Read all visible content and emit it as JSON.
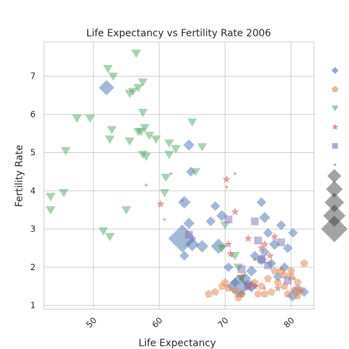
{
  "chart_data": {
    "type": "scatter",
    "title": "Life Expectancy vs Fertility Rate 2006",
    "xlabel": "Life Expectancy",
    "ylabel": "Fertility Rate",
    "xlim": [
      42.5,
      83.5
    ],
    "ylim": [
      0.9,
      7.9
    ],
    "xticks": [
      50,
      60,
      70,
      80
    ],
    "yticks": [
      1,
      2,
      3,
      4,
      5,
      6,
      7
    ],
    "grid": true,
    "legend": "right",
    "series": [
      {
        "marker": "diamond",
        "color": "#4c72b0",
        "points": [
          [
            52,
            6.7
          ],
          [
            64.5,
            5.2
          ],
          [
            64.8,
            4.5
          ],
          [
            63.8,
            3.7
          ],
          [
            64.5,
            3.15
          ],
          [
            63.5,
            2.75
          ],
          [
            65,
            2.6
          ],
          [
            66.5,
            2.55
          ],
          [
            63.8,
            2.3
          ],
          [
            67.8,
            3.2
          ],
          [
            68.5,
            3.6
          ],
          [
            69.5,
            3.35
          ],
          [
            69,
            2.55
          ],
          [
            70.5,
            2.0
          ],
          [
            72,
            1.5
          ],
          [
            73,
            1.7
          ],
          [
            74,
            1.9
          ],
          [
            75.5,
            3.7
          ],
          [
            76,
            3.3
          ],
          [
            76.5,
            2.9
          ],
          [
            77.5,
            2.6
          ],
          [
            78.5,
            3.1
          ],
          [
            80.3,
            2.9
          ],
          [
            79,
            2.0
          ],
          [
            80.2,
            1.25
          ],
          [
            81,
            1.4
          ],
          [
            82,
            1.35
          ],
          [
            74.5,
            2.3
          ],
          [
            76,
            2.4
          ],
          [
            75.5,
            2.2
          ],
          [
            77,
            2.1
          ],
          [
            78,
            1.75
          ],
          [
            71.5,
            1.6
          ],
          [
            72.5,
            1.3
          ],
          [
            73.5,
            1.55
          ],
          [
            79.5,
            2.5
          ],
          [
            74,
            1.5
          ]
        ],
        "sizes": [
          22,
          16,
          14,
          18,
          16,
          40,
          20,
          18,
          14,
          14,
          14,
          16,
          22,
          14,
          34,
          18,
          16,
          14,
          16,
          14,
          16,
          14,
          14,
          14,
          16,
          16,
          14,
          14,
          14,
          16,
          14,
          14,
          14,
          12,
          14,
          14,
          18
        ]
      },
      {
        "marker": "pentagon",
        "color": "#dd8452",
        "points": [
          [
            67.5,
            1.3
          ],
          [
            68.5,
            1.35
          ],
          [
            69.5,
            1.5
          ],
          [
            70.5,
            1.45
          ],
          [
            71.5,
            1.4
          ],
          [
            72.5,
            1.3
          ],
          [
            73.5,
            1.5
          ],
          [
            74.5,
            1.6
          ],
          [
            75,
            1.3
          ],
          [
            76,
            1.3
          ],
          [
            77,
            1.35
          ],
          [
            78,
            1.6
          ],
          [
            79,
            1.8
          ],
          [
            80,
            1.9
          ],
          [
            81,
            1.6
          ],
          [
            82,
            2.1
          ],
          [
            80.5,
            1.4
          ],
          [
            79.5,
            1.3
          ],
          [
            78.5,
            1.9
          ],
          [
            77.5,
            1.9
          ],
          [
            76.5,
            1.7
          ],
          [
            75.5,
            1.5
          ],
          [
            81.5,
            1.4
          ],
          [
            80,
            1.75
          ],
          [
            79,
            1.5
          ],
          [
            72,
            1.2
          ],
          [
            70,
            1.6
          ],
          [
            81,
            1.25
          ]
        ]
      },
      {
        "marker": "triangle-down",
        "color": "#55a868",
        "points": [
          [
            56.5,
            7.6
          ],
          [
            52.2,
            7.2
          ],
          [
            53,
            7.0
          ],
          [
            57.5,
            6.85
          ],
          [
            56.8,
            6.7
          ],
          [
            56,
            6.6
          ],
          [
            55.5,
            6.55
          ],
          [
            47.5,
            5.9
          ],
          [
            49.5,
            5.9
          ],
          [
            52.8,
            5.6
          ],
          [
            57.5,
            6.05
          ],
          [
            57.8,
            5.65
          ],
          [
            56.8,
            5.55
          ],
          [
            57.2,
            5.55
          ],
          [
            58.5,
            5.45
          ],
          [
            59.5,
            5.35
          ],
          [
            52.5,
            5.35
          ],
          [
            55.5,
            5.3
          ],
          [
            61.5,
            5.25
          ],
          [
            62.5,
            5.1
          ],
          [
            61.5,
            4.95
          ],
          [
            57.5,
            4.95
          ],
          [
            58,
            4.9
          ],
          [
            45.8,
            5.05
          ],
          [
            65,
            5.8
          ],
          [
            66.5,
            5.15
          ],
          [
            65.5,
            4.5
          ],
          [
            61,
            4.35
          ],
          [
            60.8,
            3.95
          ],
          [
            43.5,
            3.85
          ],
          [
            45.5,
            3.95
          ],
          [
            43.5,
            3.5
          ],
          [
            55,
            3.5
          ],
          [
            51.5,
            2.95
          ],
          [
            52.5,
            2.8
          ],
          [
            70,
            3.1
          ],
          [
            71.5,
            2.3
          ],
          [
            72.5,
            1.7
          ],
          [
            69.5,
            2.5
          ],
          [
            72,
            2.0
          ]
        ]
      },
      {
        "marker": "star",
        "color": "#c44e52",
        "points": [
          [
            70.2,
            4.3
          ],
          [
            60.2,
            3.65
          ],
          [
            71.5,
            3.45
          ],
          [
            70.5,
            2.6
          ],
          [
            70.8,
            2.35
          ],
          [
            73.5,
            2.75
          ],
          [
            75.5,
            2.5
          ],
          [
            76,
            2.6
          ],
          [
            77.5,
            2.8
          ],
          [
            76.8,
            2.3
          ],
          [
            72.5,
            1.75
          ],
          [
            74.5,
            1.5
          ],
          [
            78,
            1.45
          ]
        ]
      },
      {
        "marker": "square",
        "color": "#8172b3",
        "points": [
          [
            64.5,
            2.85
          ],
          [
            70.5,
            3.25
          ],
          [
            74.5,
            3.2
          ],
          [
            75.5,
            2.2
          ],
          [
            76.5,
            2.05
          ],
          [
            75,
            2.7
          ],
          [
            73.5,
            1.5
          ],
          [
            72.5,
            1.95
          ],
          [
            78.5,
            2.65
          ],
          [
            79.5,
            1.65
          ]
        ]
      },
      {
        "marker": "circle",
        "color": "#937860",
        "points": [
          [
            71.5,
            4.45
          ],
          [
            61.8,
            4.45
          ],
          [
            58,
            4.15
          ],
          [
            70.2,
            4.1
          ],
          [
            63.5,
            3.75
          ],
          [
            60.8,
            3.25
          ],
          [
            69.5,
            2.55
          ],
          [
            71,
            2.3
          ],
          [
            74.5,
            2.2
          ],
          [
            78.5,
            1.95
          ],
          [
            80.5,
            1.7
          ],
          [
            76,
            1.45
          ]
        ]
      }
    ],
    "legend_items": [
      "diamond",
      "pentagon",
      "triangle-down",
      "star",
      "square",
      "circle"
    ],
    "size_legend_items": [
      0,
      1,
      2,
      3,
      4
    ]
  }
}
